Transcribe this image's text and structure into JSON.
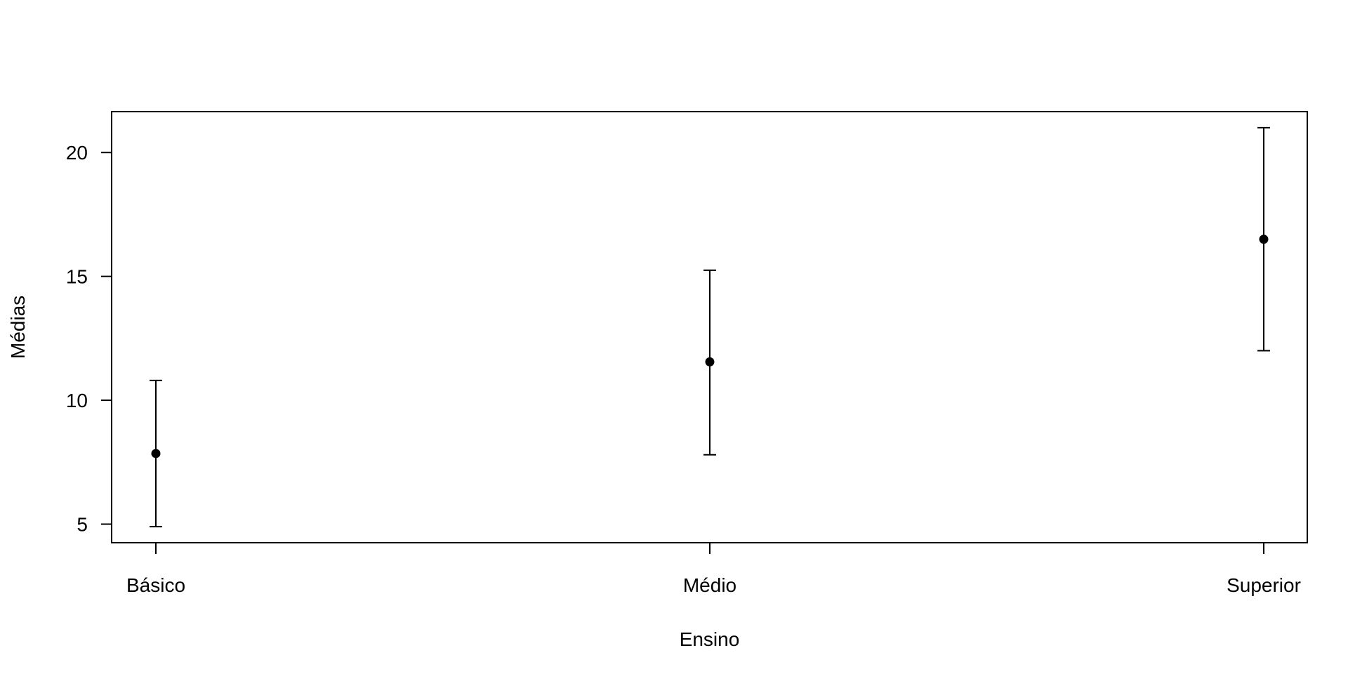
{
  "chart_data": {
    "type": "scatter",
    "title": "",
    "xlabel": "Ensino",
    "ylabel": "Médias",
    "categories": [
      "Básico",
      "Médio",
      "Superior"
    ],
    "means": [
      7.85,
      11.55,
      16.5
    ],
    "lower": [
      4.9,
      7.8,
      12.0
    ],
    "upper": [
      10.8,
      15.25,
      21.0
    ],
    "yticks": [
      5,
      10,
      15,
      20
    ],
    "ylim": [
      4.25,
      21.65
    ],
    "grid": false
  }
}
